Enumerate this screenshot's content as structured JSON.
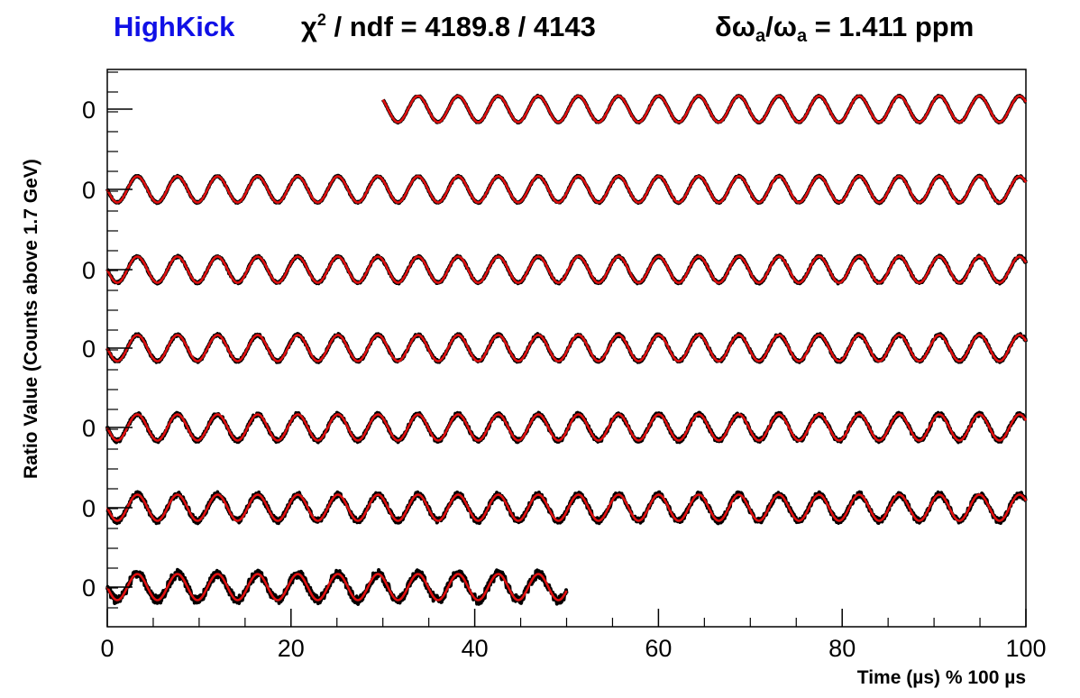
{
  "title": {
    "name": "HighKick",
    "name_color": "#1010e6",
    "chi_prefix": "χ",
    "chi_sup": "2",
    "chi_rest": " / ndf = 4189.8 / 4143",
    "prec_delta": "δω",
    "prec_sub1": "a",
    "prec_mid": "/ω",
    "prec_sub2": "a",
    "prec_rest": " = 1.411 ppm"
  },
  "colors": {
    "data": "#000000",
    "fit": "#e01010",
    "axis": "#000000"
  },
  "chart_data": {
    "type": "line",
    "xlabel": "Time (µs) % 100 µs",
    "ylabel": "Ratio Value (Counts above 1.7 GeV)",
    "xlim": [
      0,
      100
    ],
    "x_ticks": [
      "0",
      "20",
      "40",
      "60",
      "80",
      "100"
    ],
    "y_tick_labels": [
      "0",
      "0",
      "0",
      "0",
      "0",
      "0",
      "0"
    ],
    "wiggle_period_us": 4.365,
    "grid": false,
    "legend": "none",
    "series": [
      {
        "x_range": [
          30,
          100
        ],
        "amplitude": 0.5,
        "noise": 0.02
      },
      {
        "x_range": [
          0,
          100
        ],
        "amplitude": 0.5,
        "noise": 0.03
      },
      {
        "x_range": [
          0,
          100
        ],
        "amplitude": 0.5,
        "noise": 0.04
      },
      {
        "x_range": [
          0,
          100
        ],
        "amplitude": 0.5,
        "noise": 0.05
      },
      {
        "x_range": [
          0,
          100
        ],
        "amplitude": 0.5,
        "noise": 0.07
      },
      {
        "x_range": [
          0,
          100
        ],
        "amplitude": 0.5,
        "noise": 0.1
      },
      {
        "x_range": [
          0,
          50
        ],
        "amplitude": 0.5,
        "noise": 0.16
      }
    ]
  }
}
